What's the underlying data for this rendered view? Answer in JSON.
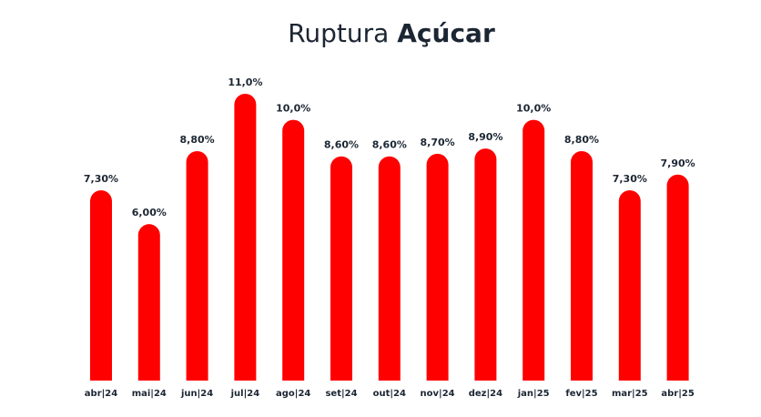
{
  "chart_data": {
    "type": "bar",
    "title": [
      "Ruptura",
      "Açúcar"
    ],
    "categories": [
      "abr|24",
      "mai|24",
      "jun|24",
      "jul|24",
      "ago|24",
      "set|24",
      "out|24",
      "nov|24",
      "dez|24",
      "jan|25",
      "fev|25",
      "mar|25",
      "abr|25"
    ],
    "values": [
      7.3,
      6.0,
      8.8,
      11.0,
      10.0,
      8.6,
      8.6,
      8.7,
      8.9,
      10.0,
      8.8,
      7.3,
      7.9
    ],
    "value_labels": [
      "7,30%",
      "6,00%",
      "8,80%",
      "11,0%",
      "10,0%",
      "8,60%",
      "8,60%",
      "8,70%",
      "8,90%",
      "10,0%",
      "8,80%",
      "7,30%",
      "7,90%"
    ],
    "color": "#ff0000"
  }
}
